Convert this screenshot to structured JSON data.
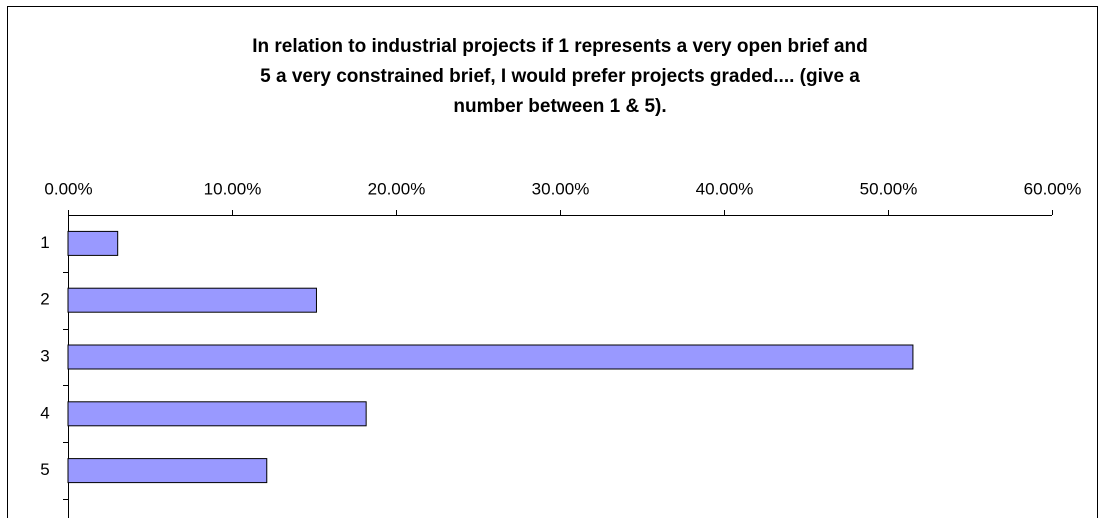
{
  "chart_data": {
    "type": "bar",
    "orientation": "horizontal",
    "title": [
      "In relation to industrial projects if 1 represents a very open brief and",
      "5 a very constrained brief, I would prefer projects graded.... (give a",
      "number between 1 & 5)."
    ],
    "categories": [
      "1",
      "2",
      "3",
      "4",
      "5"
    ],
    "values": [
      3.03,
      15.15,
      51.52,
      18.18,
      12.12
    ],
    "color": "#9999ff",
    "xlim": [
      0,
      60
    ],
    "xticks": [
      {
        "value": 0,
        "label": "0.00%"
      },
      {
        "value": 10,
        "label": "10.00%"
      },
      {
        "value": 20,
        "label": "20.00%"
      },
      {
        "value": 30,
        "label": "30.00%"
      },
      {
        "value": 40,
        "label": "40.00%"
      },
      {
        "value": 50,
        "label": "50.00%"
      },
      {
        "value": 60,
        "label": "60.00%"
      }
    ],
    "grid": false
  }
}
